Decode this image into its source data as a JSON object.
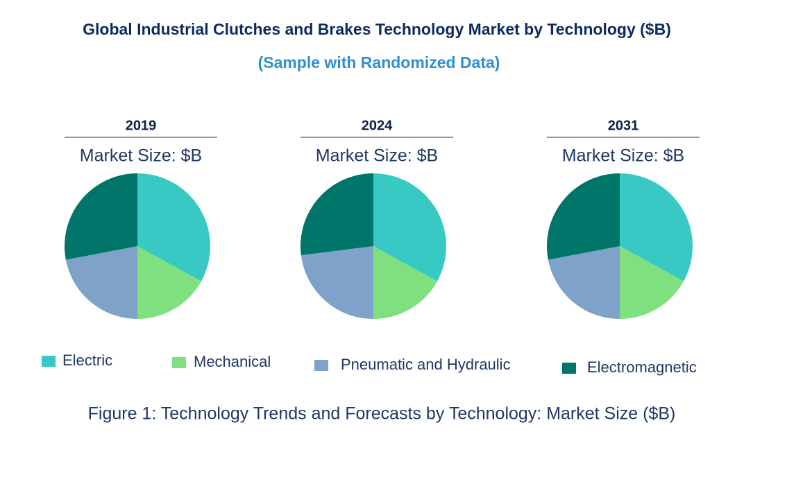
{
  "title": "Global Industrial Clutches and Brakes Technology Market by Technology ($B)",
  "subtitle": "(Sample with Randomized Data)",
  "caption": "Figure 1: Technology Trends and Forecasts by Technology: Market Size ($B)",
  "legend": {
    "categories": [
      "Electric",
      "Mechanical",
      "Pneumatic and Hydraulic",
      "Electromagnetic"
    ],
    "colors": [
      "#39c9c4",
      "#7ee07e",
      "#7fa3c8",
      "#00756a"
    ]
  },
  "chart_data": [
    {
      "type": "pie",
      "title": "2019",
      "subtitle": "Market Size: $B",
      "values": [
        33,
        17,
        22,
        28
      ]
    },
    {
      "type": "pie",
      "title": "2024",
      "subtitle": "Market Size: $B",
      "values": [
        33,
        17,
        23,
        27
      ]
    },
    {
      "type": "pie",
      "title": "2031",
      "subtitle": "Market Size: $B",
      "values": [
        33,
        17,
        22,
        28
      ]
    }
  ]
}
